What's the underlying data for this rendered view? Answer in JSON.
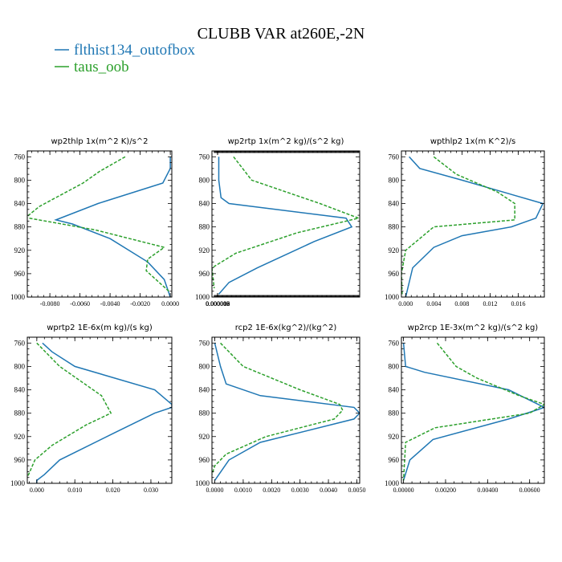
{
  "figure": {
    "title": "CLUBB VAR at260E,-2N",
    "legend": [
      {
        "name": "flthist134_outofbox",
        "color": "#1f77b4",
        "dash": "solid"
      },
      {
        "name": "taus_oob",
        "color": "#2ca02c",
        "dash": "dashed"
      }
    ]
  },
  "chart_data": [
    {
      "type": "line",
      "title": "wp2thlp   1x(m^2 K)/s^2",
      "y_axis": "pressure",
      "y_inverted": true,
      "ylim": [
        750,
        1000
      ],
      "ytick_labels": [
        "760",
        "800",
        "840",
        "880",
        "920",
        "960",
        "1000"
      ],
      "xlim": [
        -0.0095,
        0.0001
      ],
      "xtick_labels": [
        "-0.0080",
        "-0.0060",
        "-0.0040",
        "-0.0020",
        "0.0000"
      ],
      "series": [
        {
          "name": "flthist134_outofbox",
          "x": [
            0.0,
            0.0,
            -0.0005,
            -0.0048,
            -0.0076,
            -0.0065,
            -0.004,
            -0.0015,
            -0.0004,
            0.0
          ],
          "y": [
            760,
            780,
            805,
            840,
            868,
            875,
            900,
            940,
            970,
            1000
          ]
        },
        {
          "name": "taus_oob",
          "x": [
            -0.003,
            -0.0047,
            -0.0058,
            -0.0087,
            -0.0096,
            -0.005,
            -0.0004,
            -0.0015,
            -0.0016,
            -0.0001
          ],
          "y": [
            760,
            785,
            805,
            845,
            864,
            885,
            915,
            935,
            955,
            990
          ]
        }
      ]
    },
    {
      "type": "line",
      "title": "wp2rtp   1x(m^2 kg)/(s^2 kg)",
      "y_axis": "pressure",
      "y_inverted": true,
      "ylim": [
        750,
        1000
      ],
      "ytick_labels": [
        "760",
        "800",
        "840",
        "880",
        "920",
        "960",
        "1000"
      ],
      "xlim": [
        -5e-06,
        0.000125
      ],
      "xtick_labels": [
        "0.000000",
        "0.000003",
        "0.000006",
        "0.000009",
        "0.000012"
      ],
      "series": [
        {
          "name": "flthist134_outofbox",
          "x": [
            1e-06,
            1e-06,
            3e-06,
            1e-05,
            0.000113,
            0.000118,
            8.5e-05,
            3.5e-05,
            1e-05,
            1e-06
          ],
          "y": [
            760,
            800,
            830,
            840,
            865,
            880,
            905,
            950,
            975,
            995
          ]
        },
        {
          "name": "taus_oob",
          "x": [
            1.4e-05,
            3e-05,
            9e-05,
            0.000124,
            7e-05,
            1.6e-05,
            -5e-06,
            -3e-06
          ],
          "y": [
            760,
            800,
            840,
            865,
            890,
            925,
            950,
            985
          ]
        }
      ]
    },
    {
      "type": "line",
      "title": "wpthlp2   1x(m K^2)/s",
      "y_axis": "pressure",
      "y_inverted": true,
      "ylim": [
        750,
        1000
      ],
      "ytick_labels": [
        "760",
        "800",
        "840",
        "880",
        "920",
        "960",
        "1000"
      ],
      "xlim": [
        -0.0006,
        0.0197
      ],
      "xtick_labels": [
        "0.000",
        "0.004",
        "0.008",
        "0.012",
        "0.016"
      ],
      "series": [
        {
          "name": "flthist134_outofbox",
          "x": [
            0.0005,
            0.002,
            0.008,
            0.0195,
            0.0185,
            0.015,
            0.008,
            0.004,
            0.001,
            0.0
          ],
          "y": [
            760,
            780,
            800,
            840,
            865,
            880,
            895,
            915,
            950,
            1000
          ]
        },
        {
          "name": "taus_oob",
          "x": [
            0.004,
            0.0072,
            0.013,
            0.0155,
            0.0155,
            0.004,
            0.0,
            -0.0006,
            -0.0005
          ],
          "y": [
            760,
            790,
            820,
            840,
            868,
            880,
            920,
            960,
            995
          ]
        }
      ]
    },
    {
      "type": "line",
      "title": "wprtp2   1E-6x(m kg)/(s kg)",
      "y_axis": "pressure",
      "y_inverted": true,
      "ylim": [
        750,
        1000
      ],
      "ytick_labels": [
        "760",
        "800",
        "840",
        "880",
        "920",
        "960",
        "1000"
      ],
      "xlim": [
        -0.0025,
        0.0355
      ],
      "xtick_labels": [
        "0.000",
        "0.010",
        "0.020",
        "0.030"
      ],
      "series": [
        {
          "name": "flthist134_outofbox",
          "x": [
            0.0015,
            0.004,
            0.01,
            0.031,
            0.0355,
            0.0355,
            0.031,
            0.02,
            0.006,
            0.002,
            0.0,
            0.0
          ],
          "y": [
            760,
            775,
            800,
            840,
            865,
            870,
            880,
            915,
            960,
            985,
            995,
            1000
          ]
        },
        {
          "name": "taus_oob",
          "x": [
            0.0,
            0.006,
            0.017,
            0.0195,
            0.013,
            0.004,
            -0.0005,
            -0.0025
          ],
          "y": [
            760,
            800,
            850,
            880,
            900,
            935,
            960,
            990
          ]
        }
      ]
    },
    {
      "type": "line",
      "title": "rcp2   1E-6x(kg^2)/(kg^2)",
      "y_axis": "pressure",
      "y_inverted": true,
      "ylim": [
        750,
        1000
      ],
      "ytick_labels": [
        "760",
        "800",
        "840",
        "880",
        "920",
        "960",
        "1000"
      ],
      "xlim": [
        -0.0001,
        0.0051
      ],
      "xtick_labels": [
        "0.0000",
        "0.0010",
        "0.0020",
        "0.0030",
        "0.0040",
        "0.0050"
      ],
      "series": [
        {
          "name": "flthist134_outofbox",
          "x": [
            0.0,
            0.0002,
            0.0004,
            0.0016,
            0.0049,
            0.0051,
            0.0049,
            0.0016,
            0.0005,
            0.0
          ],
          "y": [
            760,
            800,
            830,
            850,
            870,
            880,
            890,
            930,
            960,
            995
          ]
        },
        {
          "name": "taus_oob",
          "x": [
            0.0002,
            0.001,
            0.003,
            0.0044,
            0.0045,
            0.0042,
            0.0018,
            0.0004,
            0.0,
            -0.0001
          ],
          "y": [
            760,
            800,
            840,
            865,
            875,
            890,
            920,
            950,
            970,
            985
          ]
        }
      ]
    },
    {
      "type": "line",
      "title": "wp2rcp   1E-3x(m^2 kg)/(s^2 kg)",
      "y_axis": "pressure",
      "y_inverted": true,
      "ylim": [
        750,
        1000
      ],
      "ytick_labels": [
        "760",
        "800",
        "840",
        "880",
        "920",
        "960",
        "1000"
      ],
      "xlim": [
        -0.0001,
        0.0067
      ],
      "xtick_labels": [
        "0.00000",
        "0.00200",
        "0.00400",
        "0.00600"
      ],
      "series": [
        {
          "name": "flthist134_outofbox",
          "x": [
            0.0,
            0.0001,
            0.001,
            0.005,
            0.0067,
            0.0063,
            0.005,
            0.0014,
            0.0003,
            0.0
          ],
          "y": [
            760,
            800,
            810,
            840,
            870,
            875,
            890,
            925,
            960,
            995
          ]
        },
        {
          "name": "taus_oob",
          "x": [
            0.0016,
            0.0025,
            0.0035,
            0.0055,
            0.0067,
            0.006,
            0.0015,
            0.0001,
            0.0
          ],
          "y": [
            760,
            800,
            820,
            850,
            865,
            880,
            905,
            930,
            995
          ]
        }
      ]
    }
  ]
}
